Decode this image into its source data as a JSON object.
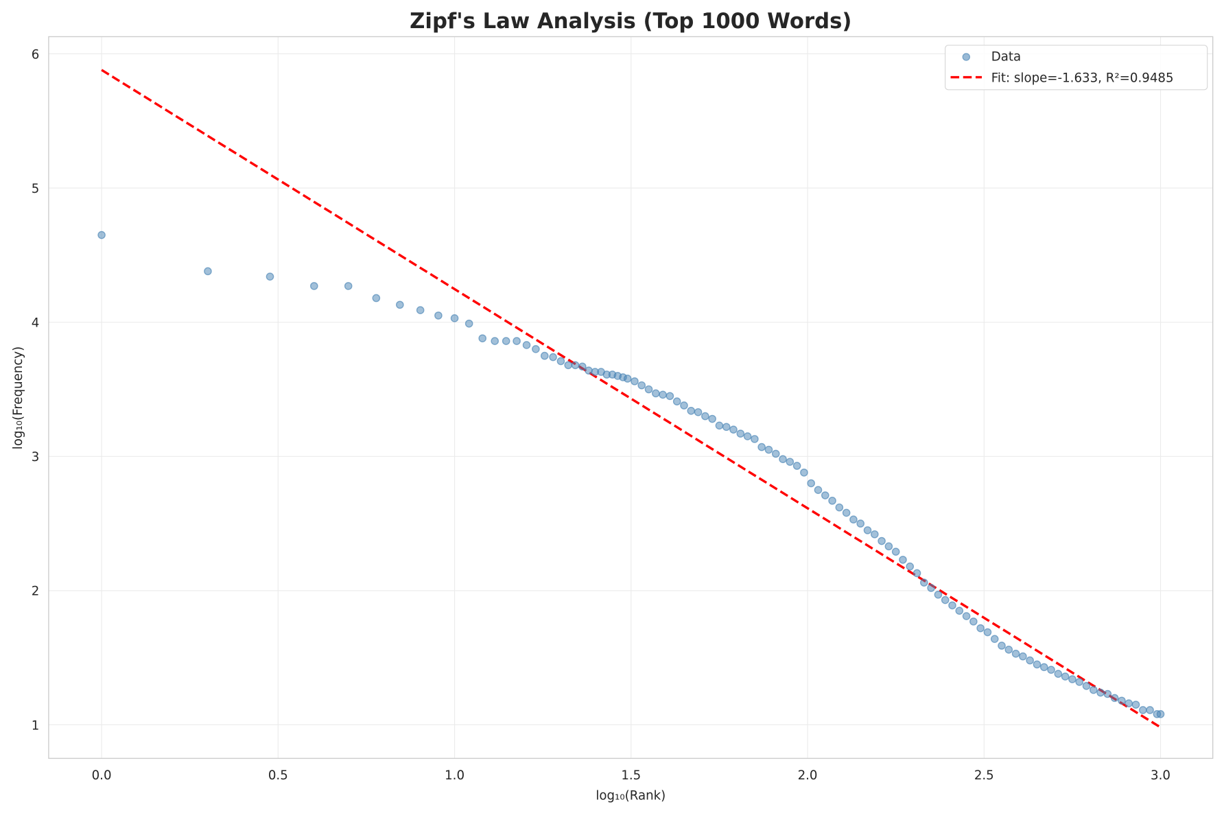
{
  "chart_data": {
    "type": "scatter",
    "title": "Zipf's Law Analysis (Top 1000 Words)",
    "xlabel": "log₁₀(Rank)",
    "ylabel": "log₁₀(Frequency)",
    "xlim": [
      -0.15,
      3.148
    ],
    "ylim": [
      0.75,
      6.128
    ],
    "xticks": [
      0.0,
      0.5,
      1.0,
      1.5,
      2.0,
      2.5,
      3.0
    ],
    "xtick_labels": [
      "0.0",
      "0.5",
      "1.0",
      "1.5",
      "2.0",
      "2.5",
      "3.0"
    ],
    "yticks": [
      1,
      2,
      3,
      4,
      5,
      6
    ],
    "ytick_labels": [
      "1",
      "2",
      "3",
      "4",
      "5",
      "6"
    ],
    "grid": true,
    "legend_position": "top-right",
    "series": [
      {
        "name": "Data",
        "kind": "scatter",
        "color": "#4682b4",
        "points": [
          [
            0,
            4.65
          ],
          [
            0.301,
            4.38
          ],
          [
            0.477,
            4.34
          ],
          [
            0.602,
            4.27
          ],
          [
            0.699,
            4.27
          ],
          [
            0.778,
            4.18
          ],
          [
            0.845,
            4.13
          ],
          [
            0.903,
            4.09
          ],
          [
            0.954,
            4.05
          ],
          [
            1.0,
            4.03
          ],
          [
            1.041,
            3.99
          ],
          [
            1.079,
            3.88
          ],
          [
            1.114,
            3.86
          ],
          [
            1.146,
            3.86
          ],
          [
            1.176,
            3.86
          ],
          [
            1.204,
            3.83
          ],
          [
            1.23,
            3.8
          ],
          [
            1.255,
            3.75
          ],
          [
            1.279,
            3.74
          ],
          [
            1.301,
            3.71
          ],
          [
            1.322,
            3.68
          ],
          [
            1.342,
            3.68
          ],
          [
            1.362,
            3.67
          ],
          [
            1.38,
            3.64
          ],
          [
            1.398,
            3.63
          ],
          [
            1.415,
            3.63
          ],
          [
            1.431,
            3.61
          ],
          [
            1.447,
            3.61
          ],
          [
            1.462,
            3.6
          ],
          [
            1.477,
            3.59
          ],
          [
            1.49,
            3.58
          ],
          [
            1.51,
            3.56
          ],
          [
            1.53,
            3.53
          ],
          [
            1.55,
            3.5
          ],
          [
            1.57,
            3.47
          ],
          [
            1.59,
            3.46
          ],
          [
            1.61,
            3.45
          ],
          [
            1.63,
            3.41
          ],
          [
            1.65,
            3.38
          ],
          [
            1.67,
            3.34
          ],
          [
            1.69,
            3.33
          ],
          [
            1.71,
            3.3
          ],
          [
            1.73,
            3.28
          ],
          [
            1.75,
            3.23
          ],
          [
            1.77,
            3.22
          ],
          [
            1.79,
            3.2
          ],
          [
            1.81,
            3.17
          ],
          [
            1.83,
            3.15
          ],
          [
            1.85,
            3.13
          ],
          [
            1.87,
            3.07
          ],
          [
            1.89,
            3.05
          ],
          [
            1.91,
            3.02
          ],
          [
            1.93,
            2.98
          ],
          [
            1.95,
            2.96
          ],
          [
            1.97,
            2.93
          ],
          [
            1.99,
            2.88
          ],
          [
            2.01,
            2.8
          ],
          [
            2.03,
            2.75
          ],
          [
            2.05,
            2.71
          ],
          [
            2.07,
            2.67
          ],
          [
            2.09,
            2.62
          ],
          [
            2.11,
            2.58
          ],
          [
            2.13,
            2.53
          ],
          [
            2.15,
            2.5
          ],
          [
            2.17,
            2.45
          ],
          [
            2.19,
            2.42
          ],
          [
            2.21,
            2.37
          ],
          [
            2.23,
            2.33
          ],
          [
            2.25,
            2.29
          ],
          [
            2.27,
            2.23
          ],
          [
            2.29,
            2.18
          ],
          [
            2.31,
            2.13
          ],
          [
            2.33,
            2.06
          ],
          [
            2.35,
            2.02
          ],
          [
            2.37,
            1.97
          ],
          [
            2.39,
            1.93
          ],
          [
            2.41,
            1.89
          ],
          [
            2.43,
            1.85
          ],
          [
            2.45,
            1.81
          ],
          [
            2.47,
            1.77
          ],
          [
            2.49,
            1.72
          ],
          [
            2.51,
            1.69
          ],
          [
            2.53,
            1.64
          ],
          [
            2.55,
            1.59
          ],
          [
            2.57,
            1.56
          ],
          [
            2.59,
            1.53
          ],
          [
            2.61,
            1.51
          ],
          [
            2.63,
            1.48
          ],
          [
            2.65,
            1.45
          ],
          [
            2.67,
            1.43
          ],
          [
            2.69,
            1.41
          ],
          [
            2.71,
            1.38
          ],
          [
            2.73,
            1.36
          ],
          [
            2.75,
            1.34
          ],
          [
            2.77,
            1.32
          ],
          [
            2.79,
            1.29
          ],
          [
            2.81,
            1.26
          ],
          [
            2.83,
            1.24
          ],
          [
            2.85,
            1.23
          ],
          [
            2.87,
            1.2
          ],
          [
            2.89,
            1.18
          ],
          [
            2.91,
            1.16
          ],
          [
            2.93,
            1.15
          ],
          [
            2.95,
            1.11
          ],
          [
            2.97,
            1.11
          ],
          [
            2.99,
            1.08
          ],
          [
            3.0,
            1.08
          ]
        ]
      },
      {
        "name": "Fit: slope=-1.633, R²=0.9485",
        "kind": "line",
        "style": "dashed",
        "color": "#ff0000",
        "slope": -1.633,
        "intercept": 5.88,
        "x_range": [
          0,
          3.0
        ]
      }
    ]
  }
}
